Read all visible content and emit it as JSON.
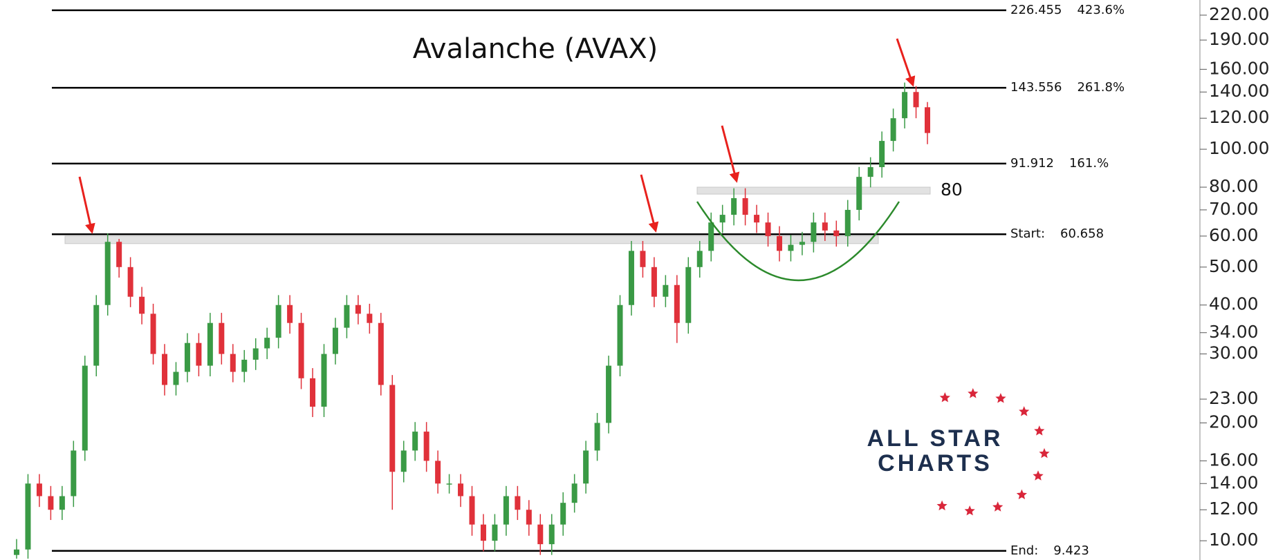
{
  "chart_data": {
    "type": "candlestick",
    "title": "Avalanche (AVAX)",
    "log_scale": true,
    "up_color": "#3a9a45",
    "down_color": "#e0313a",
    "open": [
      9.2,
      9.5,
      14,
      13,
      12,
      13,
      17,
      28,
      40,
      58,
      50,
      42,
      38,
      30,
      25,
      27,
      32,
      28,
      36,
      30,
      27,
      29,
      31,
      33,
      40,
      36,
      26,
      22,
      30,
      35,
      40,
      38,
      36,
      25,
      15,
      17,
      19,
      16,
      14,
      14,
      13,
      11,
      10,
      11,
      13,
      12,
      11,
      9.8,
      11,
      12.5,
      14,
      17,
      20,
      28,
      40,
      55,
      50,
      42,
      45,
      36,
      50,
      55,
      65,
      68,
      75,
      68,
      65,
      60,
      55,
      57,
      58,
      65,
      62,
      60,
      70,
      85,
      90,
      105,
      120,
      140,
      128
    ],
    "high": [
      10.1,
      14.8,
      14.8,
      13.8,
      13.8,
      18,
      29.7,
      42.4,
      61,
      59,
      53,
      44.5,
      40.3,
      31.8,
      28.6,
      33.9,
      33.9,
      38.2,
      38.2,
      31.8,
      30.7,
      32.9,
      35,
      42.4,
      42.4,
      38.2,
      27.6,
      31.8,
      37.1,
      42.4,
      42.4,
      40.3,
      38.2,
      26.5,
      18,
      20.1,
      20.1,
      17,
      14.8,
      14.8,
      13.8,
      11.7,
      11.7,
      13.8,
      13.8,
      12.7,
      11.7,
      11.7,
      13.3,
      14.8,
      18,
      21.2,
      29.7,
      42.4,
      58.3,
      58.3,
      53,
      47.7,
      47.7,
      53,
      58.3,
      68.9,
      72.1,
      79.5,
      79.5,
      72.1,
      68.9,
      63.6,
      60.4,
      61.5,
      68.9,
      68.9,
      65.7,
      74.2,
      90.1,
      95.4,
      111,
      127,
      148,
      145,
      132
    ],
    "low": [
      9.0,
      9.0,
      12.2,
      11.3,
      11.3,
      12.2,
      16,
      26.3,
      37.6,
      47,
      39.5,
      35.7,
      28.2,
      23.5,
      23.5,
      25.4,
      26.3,
      26.3,
      28.2,
      25.4,
      25.4,
      27.3,
      29.1,
      31,
      33.8,
      24.4,
      20.7,
      20.7,
      28.2,
      32.9,
      35.7,
      33.8,
      23.5,
      12,
      14.1,
      16,
      15,
      13.2,
      13.2,
      12.2,
      10.3,
      9.4,
      9.4,
      10.3,
      11.3,
      10.3,
      9.2,
      9.2,
      10.3,
      11.8,
      13.2,
      16,
      18.8,
      26.3,
      37.6,
      47,
      39.5,
      39.5,
      32,
      33.8,
      47,
      51.7,
      61.1,
      63.9,
      63.9,
      61.1,
      56.4,
      51.7,
      51.7,
      53.6,
      54.5,
      58.3,
      56.4,
      56.4,
      65.8,
      79.9,
      84.6,
      98.7,
      113,
      120,
      103
    ],
    "close": [
      9.5,
      14,
      13,
      12,
      13,
      17,
      28,
      40,
      58,
      50,
      42,
      38,
      30,
      25,
      27,
      32,
      28,
      36,
      30,
      27,
      29,
      31,
      33,
      40,
      36,
      26,
      22,
      30,
      35,
      40,
      38,
      36,
      25,
      15,
      17,
      19,
      16,
      14,
      14,
      13,
      11,
      10,
      11,
      13,
      12,
      11,
      9.8,
      11,
      12.5,
      14,
      17,
      20,
      28,
      40,
      55,
      50,
      42,
      45,
      36,
      50,
      55,
      65,
      68,
      75,
      68,
      65,
      60,
      55,
      57,
      58,
      65,
      62,
      60,
      70,
      85,
      90,
      105,
      120,
      140,
      128,
      110
    ],
    "ylim": [
      8.93,
      240.5
    ],
    "yticks": [
      {
        "value": 220,
        "label": "220.00"
      },
      {
        "value": 190,
        "label": "190.00"
      },
      {
        "value": 160,
        "label": "160.00"
      },
      {
        "value": 140,
        "label": "140.00"
      },
      {
        "value": 120,
        "label": "120.00"
      },
      {
        "value": 100,
        "label": "100.00"
      },
      {
        "value": 80,
        "label": "80.00"
      },
      {
        "value": 70,
        "label": "70.00"
      },
      {
        "value": 60,
        "label": "60.00"
      },
      {
        "value": 50,
        "label": "50.00"
      },
      {
        "value": 40,
        "label": "40.00"
      },
      {
        "value": 34,
        "label": "34.00"
      },
      {
        "value": 30,
        "label": "30.00"
      },
      {
        "value": 23,
        "label": "23.00"
      },
      {
        "value": 20,
        "label": "20.00"
      },
      {
        "value": 16,
        "label": "16.00"
      },
      {
        "value": 14,
        "label": "14.00"
      },
      {
        "value": 12,
        "label": "12.00"
      },
      {
        "value": 10,
        "label": "10.00"
      }
    ],
    "levels": [
      {
        "value": 226.455,
        "label": "226.455",
        "ratio": "423.6%"
      },
      {
        "value": 143.556,
        "label": "143.556",
        "ratio": "261.8%"
      },
      {
        "value": 91.912,
        "label": "91.912",
        "ratio": "161.%"
      },
      {
        "value": 60.658,
        "prefix": "Start:",
        "label": "60.658"
      },
      {
        "value": 9.423,
        "prefix": "End:",
        "label": "9.423"
      }
    ],
    "zones": [
      {
        "from": 76.8,
        "to": 80,
        "label": "80"
      },
      {
        "from": 57.4,
        "to": 60
      }
    ]
  },
  "logo": {
    "line1": "ALL STAR",
    "line2": "CHARTS"
  }
}
